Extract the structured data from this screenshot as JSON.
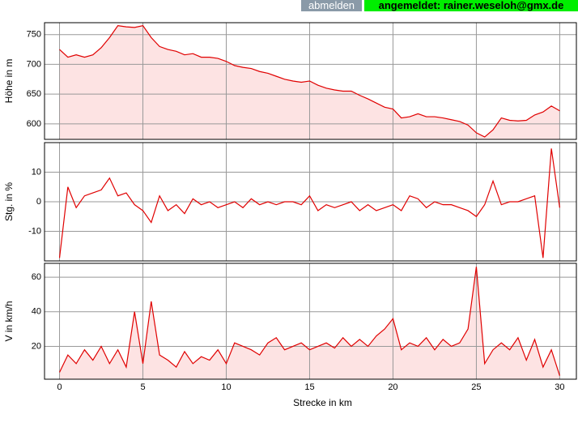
{
  "header": {
    "logout": "abmelden",
    "status": "angemeldet: rainer.weseloh@gmx.de"
  },
  "chart_data": [
    {
      "type": "area",
      "y_label": "Höhe in m",
      "color": "#e00000",
      "fill": "#fde3e3",
      "grid": true,
      "xlim": [
        -0.9,
        31
      ],
      "xticks": [
        0,
        5,
        10,
        15,
        20,
        25,
        30
      ],
      "ylim": [
        574,
        770
      ],
      "yticks": [
        600,
        650,
        700,
        750
      ],
      "x": [
        0,
        0.5,
        1,
        1.5,
        2,
        2.5,
        3,
        3.5,
        4,
        4.5,
        5,
        5.5,
        6,
        6.5,
        7,
        7.5,
        8,
        8.5,
        9,
        9.5,
        10,
        10.5,
        11,
        11.5,
        12,
        12.5,
        13,
        13.5,
        14,
        14.5,
        15,
        15.5,
        16,
        16.5,
        17,
        17.5,
        18,
        18.5,
        19,
        19.5,
        20,
        20.5,
        21,
        21.5,
        22,
        22.5,
        23,
        23.5,
        24,
        24.5,
        25,
        25.5,
        26,
        26.5,
        27,
        27.5,
        28,
        28.5,
        29,
        29.5,
        30
      ],
      "values": [
        725,
        712,
        716,
        712,
        716,
        728,
        745,
        765,
        763,
        762,
        765,
        745,
        730,
        725,
        722,
        716,
        718,
        712,
        712,
        710,
        705,
        698,
        695,
        693,
        688,
        685,
        680,
        675,
        672,
        670,
        672,
        665,
        660,
        657,
        655,
        655,
        648,
        642,
        635,
        628,
        625,
        610,
        612,
        617,
        612,
        612,
        610,
        607,
        604,
        598,
        585,
        578,
        590,
        610,
        606,
        605,
        606,
        615,
        620,
        630,
        622
      ]
    },
    {
      "type": "area",
      "y_label": "Stg. in %",
      "color": "#e00000",
      "fill": "none",
      "grid": true,
      "xlim": [
        -0.9,
        31
      ],
      "xticks": [
        0,
        5,
        10,
        15,
        20,
        25,
        30
      ],
      "ylim": [
        -20,
        20
      ],
      "yticks": [
        -10,
        0,
        10
      ],
      "x": [
        0,
        0.5,
        1,
        1.5,
        2,
        2.5,
        3,
        3.5,
        4,
        4.5,
        5,
        5.5,
        6,
        6.5,
        7,
        7.5,
        8,
        8.5,
        9,
        9.5,
        10,
        10.5,
        11,
        11.5,
        12,
        12.5,
        13,
        13.5,
        14,
        14.5,
        15,
        15.5,
        16,
        16.5,
        17,
        17.5,
        18,
        18.5,
        19,
        19.5,
        20,
        20.5,
        21,
        21.5,
        22,
        22.5,
        23,
        23.5,
        24,
        24.5,
        25,
        25.5,
        26,
        26.5,
        27,
        27.5,
        28,
        28.5,
        29,
        29.5,
        30
      ],
      "values": [
        -19,
        5,
        -2,
        2,
        3,
        4,
        8,
        2,
        3,
        -1,
        -3,
        -7,
        2,
        -3,
        -1,
        -4,
        1,
        -1,
        0,
        -2,
        -1,
        0,
        -2,
        1,
        -1,
        0,
        -1,
        0,
        0,
        -1,
        2,
        -3,
        -1,
        -2,
        -1,
        0,
        -3,
        -1,
        -3,
        -2,
        -1,
        -3,
        2,
        1,
        -2,
        0,
        -1,
        -1,
        -2,
        -3,
        -5,
        -1,
        7,
        -1,
        0,
        0,
        1,
        2,
        -19,
        18,
        -2
      ]
    },
    {
      "type": "area",
      "y_label": "V in km/h",
      "x_label": "Strecke in km",
      "color": "#e00000",
      "fill": "#fde3e3",
      "grid": true,
      "xlim": [
        -0.9,
        31
      ],
      "xticks": [
        0,
        5,
        10,
        15,
        20,
        25,
        30
      ],
      "ylim": [
        1,
        68
      ],
      "yticks": [
        20,
        40,
        60
      ],
      "x": [
        0,
        0.5,
        1,
        1.5,
        2,
        2.5,
        3,
        3.5,
        4,
        4.5,
        5,
        5.5,
        6,
        6.5,
        7,
        7.5,
        8,
        8.5,
        9,
        9.5,
        10,
        10.5,
        11,
        11.5,
        12,
        12.5,
        13,
        13.5,
        14,
        14.5,
        15,
        15.5,
        16,
        16.5,
        17,
        17.5,
        18,
        18.5,
        19,
        19.5,
        20,
        20.5,
        21,
        21.5,
        22,
        22.5,
        23,
        23.5,
        24,
        24.5,
        25,
        25.5,
        26,
        26.5,
        27,
        27.5,
        28,
        28.5,
        29,
        29.5,
        30
      ],
      "values": [
        5,
        15,
        10,
        18,
        12,
        20,
        10,
        18,
        8,
        40,
        10,
        46,
        15,
        12,
        8,
        17,
        10,
        14,
        12,
        18,
        10,
        22,
        20,
        18,
        15,
        22,
        25,
        18,
        20,
        22,
        18,
        20,
        22,
        19,
        25,
        20,
        24,
        20,
        26,
        30,
        36,
        18,
        22,
        20,
        25,
        18,
        24,
        20,
        22,
        30,
        66,
        10,
        18,
        22,
        18,
        25,
        12,
        24,
        8,
        18,
        3
      ]
    }
  ]
}
